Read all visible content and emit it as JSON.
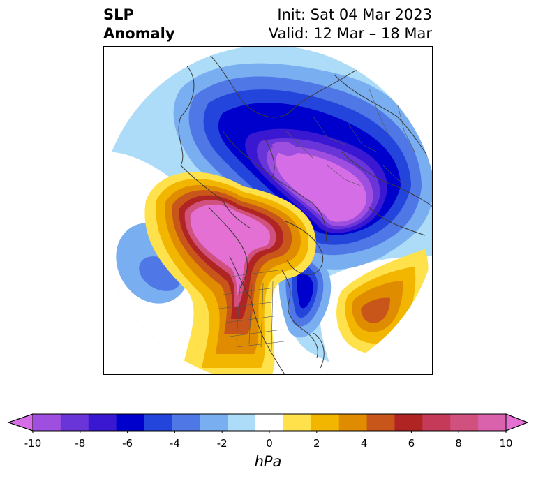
{
  "title": {
    "variable_line1": "SLP",
    "variable_line2": "Anomaly",
    "init": "Init: Sat 04 Mar 2023",
    "valid": "Valid: 12 Mar – 18 Mar"
  },
  "colorbar": {
    "unit": "hPa",
    "ticks": [
      "-10",
      "-8",
      "-6",
      "-4",
      "-2",
      "0",
      "2",
      "4",
      "6",
      "8",
      "10"
    ],
    "levels": [
      -10,
      -9,
      -8,
      -7,
      -6,
      -5,
      -4,
      -3,
      -2,
      -1,
      1,
      2,
      3,
      4,
      5,
      6,
      7,
      8,
      9,
      10
    ],
    "colors": [
      "#d56ee6",
      "#9e4fdf",
      "#6a35d8",
      "#3a18d2",
      "#0000cc",
      "#2345dc",
      "#4f78e6",
      "#79aef0",
      "#addcf9",
      "#ffffff",
      "#ffe14c",
      "#f2b500",
      "#e08c00",
      "#c8561a",
      "#b02424",
      "#c43a58",
      "#d0507e",
      "#da62ac",
      "#e570d4"
    ],
    "extend": "both"
  },
  "map": {
    "projection": "north-polar-stereographic",
    "features": [
      "coastlines",
      "country-borders",
      "state-borders"
    ]
  }
}
